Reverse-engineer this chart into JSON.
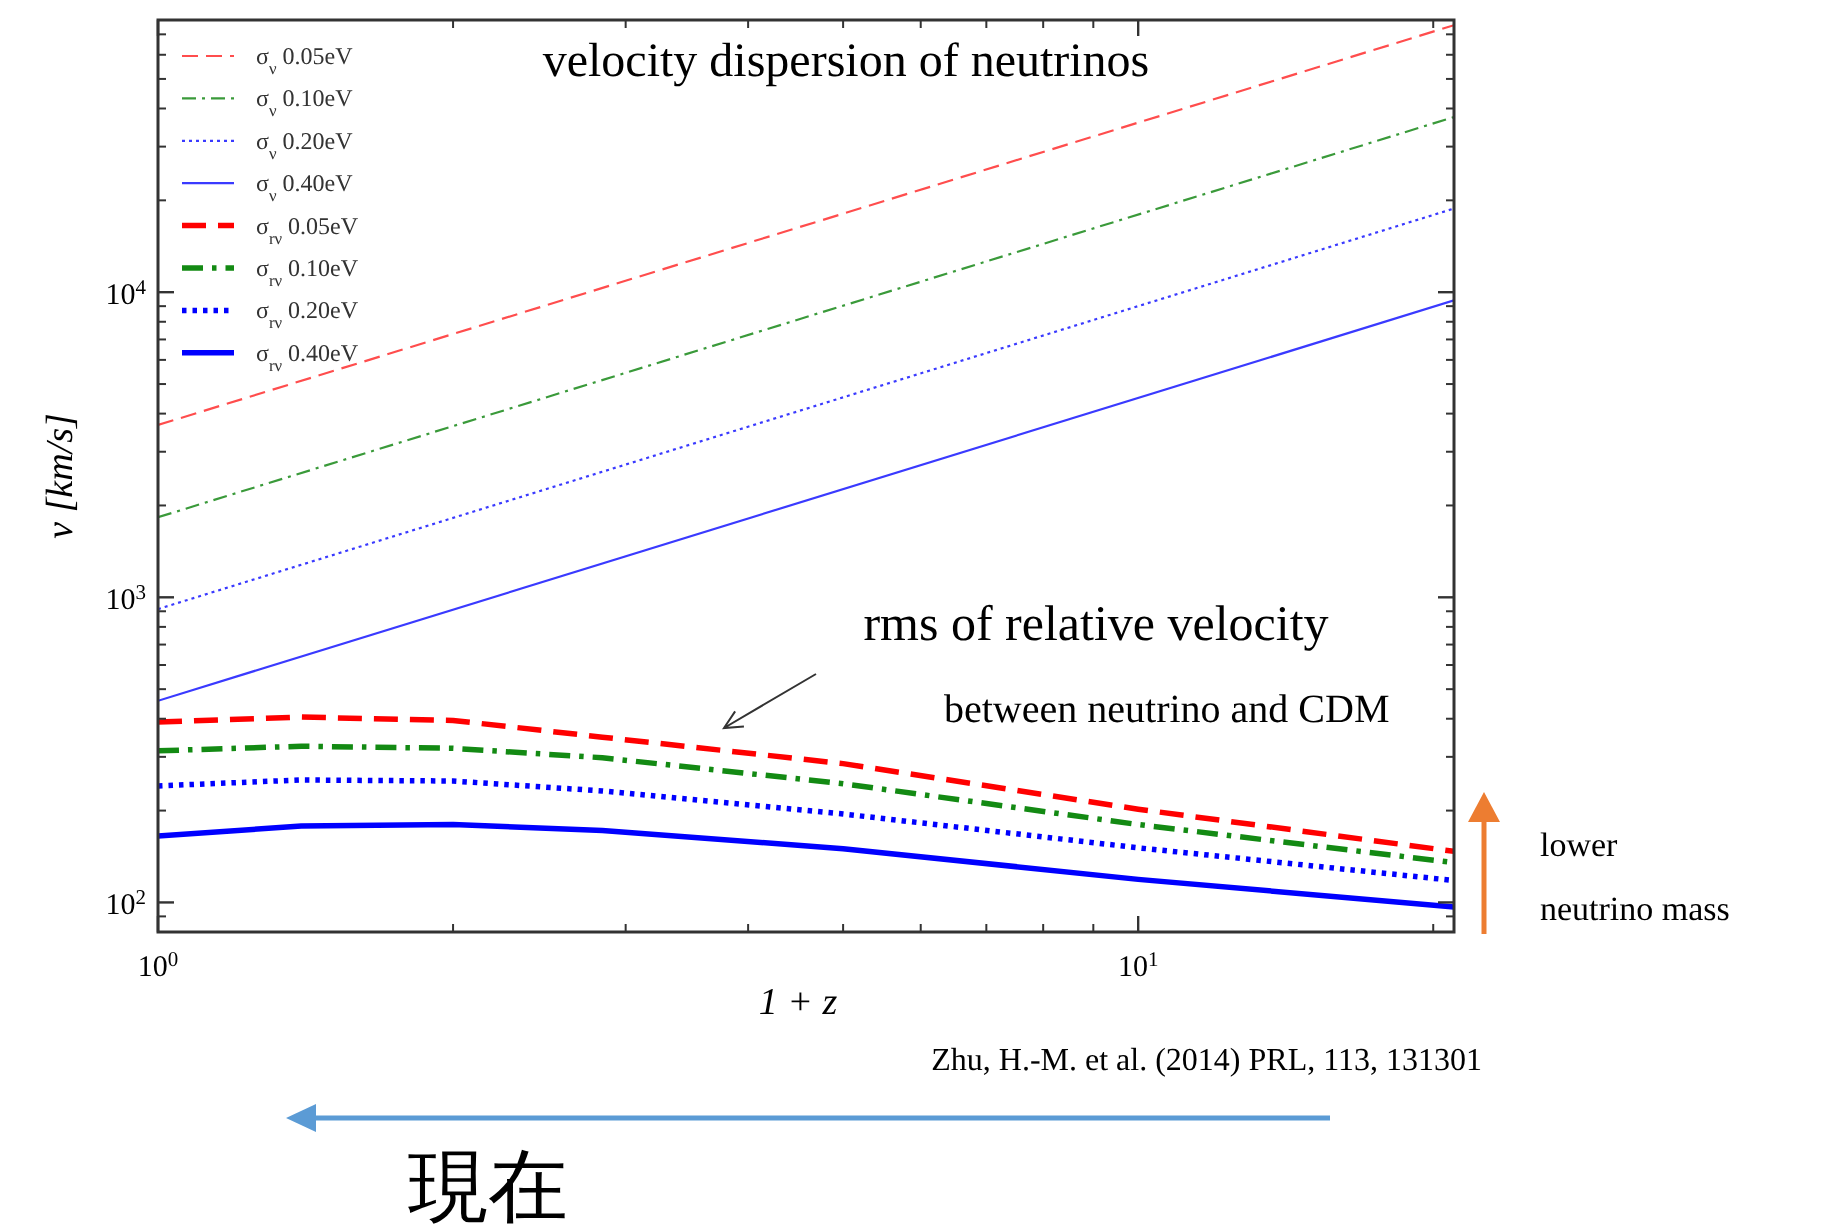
{
  "chart_data": {
    "type": "line",
    "title": "velocity dispersion of neutrinos",
    "xlabel": "1 + z",
    "ylabel": "v [km/s]",
    "log": "xy",
    "xlim": [
      1,
      21
    ],
    "ylim": [
      80,
      78000
    ],
    "xticks": [
      {
        "value": 1,
        "label": "10$^{0}$"
      },
      {
        "value": 10,
        "label": "10$^{1}$"
      }
    ],
    "yticks": [
      {
        "value": 100,
        "label": "10$^{2}$"
      },
      {
        "value": 1000,
        "label": "10$^{3}$"
      },
      {
        "value": 10000,
        "label": "10$^{4}$"
      }
    ],
    "grid": false,
    "legend": "top left",
    "series": [
      {
        "name": "σ$_{ν}$ 0.05eV",
        "color": "#ff4d4d",
        "line_style": "dashed",
        "x": [
          1,
          21
        ],
        "values": [
          3670,
          75000
        ]
      },
      {
        "name": "σ$_{ν}$ 0.10eV",
        "color": "#3a9a3a",
        "line_style": "dashdot",
        "x": [
          1,
          21
        ],
        "values": [
          1830,
          37500
        ]
      },
      {
        "name": "σ$_{ν}$ 0.20eV",
        "color": "#3a3aff",
        "line_style": "dotted",
        "x": [
          1,
          21
        ],
        "values": [
          915,
          18800
        ]
      },
      {
        "name": "σ$_{ν}$ 0.40eV",
        "color": "#3a3aff",
        "line_style": "solid",
        "x": [
          1,
          21
        ],
        "values": [
          458,
          9400
        ]
      },
      {
        "name": "σ$_{rν}$ 0.05eV",
        "color": "#ff0000",
        "line_style": "dashed",
        "x": [
          1,
          1.4,
          2,
          2.84,
          5,
          10,
          21
        ],
        "values": [
          390,
          405,
          395,
          348,
          285,
          202,
          147
        ]
      },
      {
        "name": "σ$_{rν}$ 0.10eV",
        "color": "#138a13",
        "line_style": "dashdot",
        "x": [
          1,
          1.4,
          2,
          2.84,
          5,
          10,
          21
        ],
        "values": [
          314,
          325,
          320,
          298,
          245,
          180,
          135
        ]
      },
      {
        "name": "σ$_{rν}$ 0.20eV",
        "color": "#0000ff",
        "line_style": "dotted",
        "x": [
          1,
          1.4,
          2,
          2.84,
          5,
          10,
          21
        ],
        "values": [
          241,
          252,
          250,
          232,
          195,
          151,
          118
        ]
      },
      {
        "name": "σ$_{rν}$ 0.40eV",
        "color": "#0000ff",
        "line_style": "solid",
        "x": [
          1,
          1.4,
          2,
          2.84,
          5,
          10,
          21
        ],
        "values": [
          165,
          178,
          180,
          172,
          150,
          119,
          96.6
        ]
      }
    ],
    "annotations": [
      "rms of relative velocity",
      "between neutrino and CDM",
      "lower\nneutrino mass",
      "Zhu, H.-M. et al. (2014) PRL, 113, 131301",
      "現在"
    ]
  }
}
